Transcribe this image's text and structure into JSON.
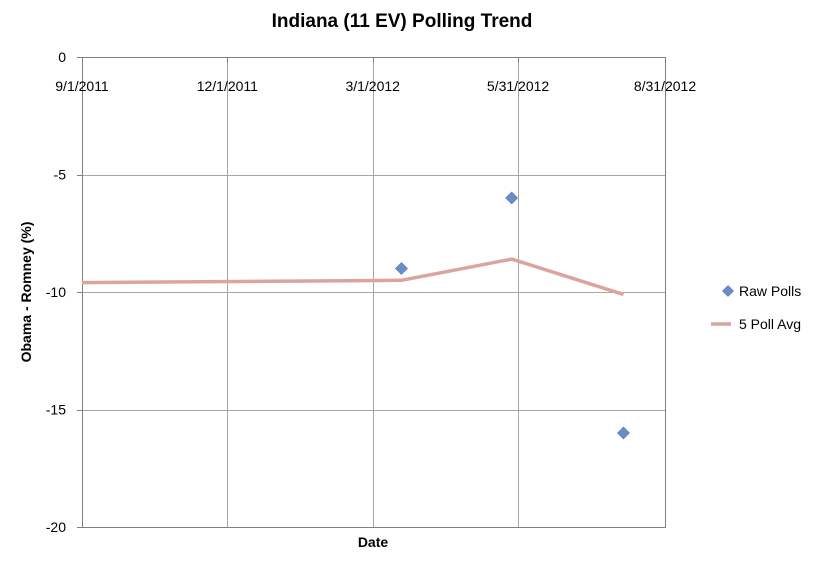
{
  "chart_data": {
    "type": "scatter",
    "title": "Indiana (11 EV) Polling Trend",
    "xlabel": "Date",
    "ylabel": "Obama - Romney (%)",
    "x_ticks": [
      "9/1/2011",
      "12/1/2011",
      "3/1/2012",
      "5/31/2012",
      "8/31/2012"
    ],
    "xlim": [
      "9/1/2011",
      "8/31/2012"
    ],
    "y_ticks": [
      0,
      -5,
      -10,
      -15,
      -20
    ],
    "ylim": [
      -20,
      0
    ],
    "grid": true,
    "legend_position": "right",
    "series": [
      {
        "name": "Raw Polls",
        "kind": "scatter",
        "marker": "diamond",
        "color": "#6b8cc6",
        "points": [
          {
            "x": "3/19/2012",
            "y": -9
          },
          {
            "x": "5/27/2012",
            "y": -6
          },
          {
            "x": "8/5/2012",
            "y": -16
          }
        ]
      },
      {
        "name": "5 Poll Avg",
        "kind": "line",
        "color": "#dca49f",
        "points": [
          {
            "x": "9/1/2011",
            "y": -9.6
          },
          {
            "x": "3/19/2012",
            "y": -9.5
          },
          {
            "x": "5/27/2012",
            "y": -8.6
          },
          {
            "x": "8/5/2012",
            "y": -10.1
          }
        ]
      }
    ]
  }
}
